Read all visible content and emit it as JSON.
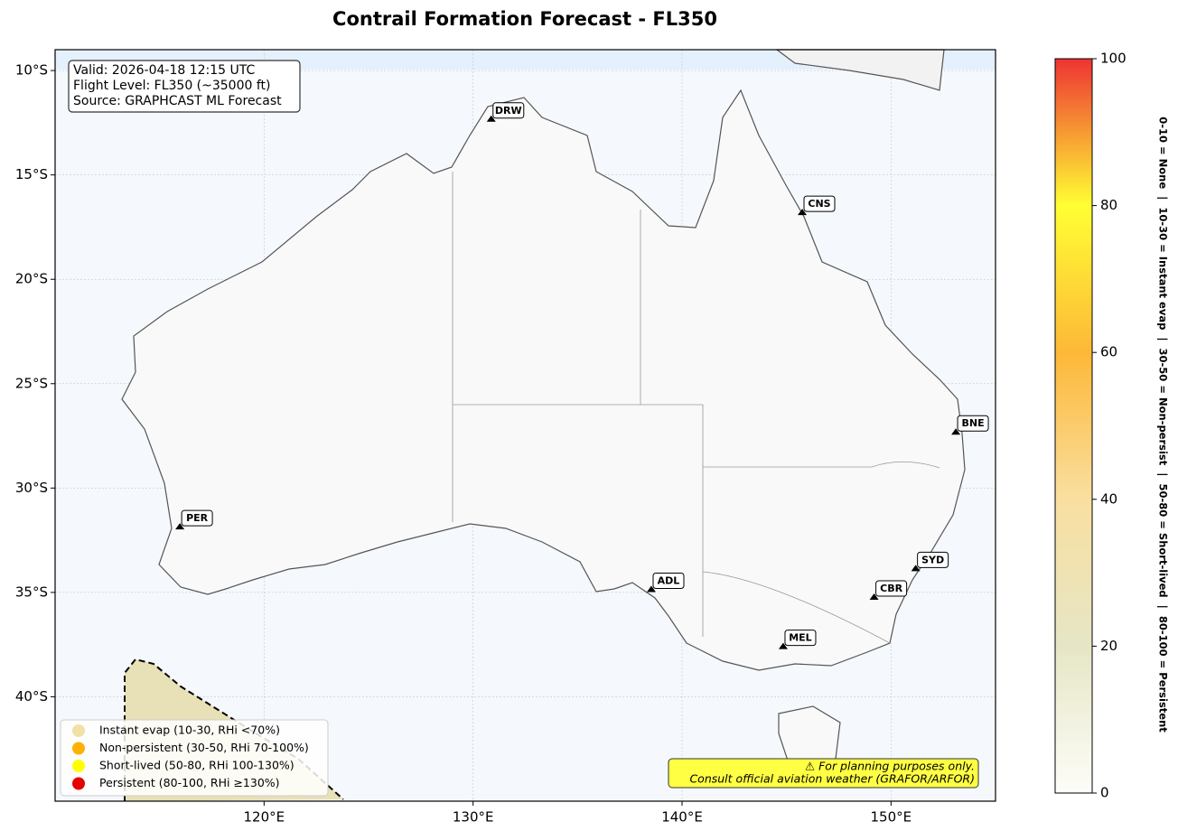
{
  "chart_data": {
    "type": "map",
    "title": "Contrail Formation Forecast - FL350",
    "info": [
      "Valid: 2026-04-18 12:15 UTC",
      "Flight Level: FL350 (~35000 ft)",
      "Source: GRAPHCAST ML Forecast"
    ],
    "xlim": [
      110,
      155
    ],
    "ylim": [
      -45,
      -9
    ],
    "xticks": [
      {
        "value": 120,
        "label": "120°E"
      },
      {
        "value": 130,
        "label": "130°E"
      },
      {
        "value": 140,
        "label": "140°E"
      },
      {
        "value": 150,
        "label": "150°E"
      }
    ],
    "yticks": [
      {
        "value": -10,
        "label": "10°S"
      },
      {
        "value": -15,
        "label": "15°S"
      },
      {
        "value": -20,
        "label": "20°S"
      },
      {
        "value": -25,
        "label": "25°S"
      },
      {
        "value": -30,
        "label": "30°S"
      },
      {
        "value": -35,
        "label": "35°S"
      },
      {
        "value": -40,
        "label": "40°S"
      }
    ],
    "grid": true,
    "stations": {
      "names": [
        "DRW",
        "CNS",
        "BNE",
        "PER",
        "ADL",
        "SYD",
        "CBR",
        "MEL"
      ],
      "lon": [
        130.87,
        145.75,
        153.1,
        115.97,
        138.53,
        151.18,
        149.19,
        144.84
      ],
      "lat": [
        -12.41,
        -16.88,
        -27.4,
        -31.94,
        -34.94,
        -33.94,
        -35.31,
        -37.67
      ]
    },
    "legend": {
      "labels": [
        "Instant evap (10-30, RHi <70%)",
        "Non-persistent (30-50, RHi 70-100%)",
        "Short-lived (50-80, RHi 100-130%)",
        "Persistent (80-100, RHi ≥130%)"
      ],
      "colors": [
        "#f0e2a6",
        "#ffb000",
        "#ffff00",
        "#e60000"
      ]
    },
    "legend_loc": "lower left",
    "note": [
      "⚠ For planning purposes only.",
      "Consult official aviation weather (GRAFOR/ARFOR)"
    ],
    "colorbar": {
      "lim": [
        0,
        100
      ],
      "ticks": [
        0,
        20,
        40,
        60,
        80,
        100
      ],
      "label": "0-10 = None  |  10-30 = Instant evap  |  30-50 = Non-persist  |  50-80 = Short-lived  |  80-100 = Persistent",
      "colors": [
        "#fdfdf9",
        "#e6e6c6",
        "#f9dfa0",
        "#fdb838",
        "#ffff33",
        "#ee3333"
      ]
    }
  }
}
